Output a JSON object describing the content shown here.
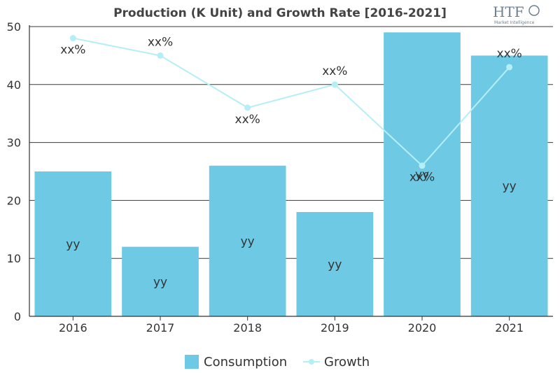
{
  "logo": {
    "mark": "HTF",
    "tagline": "Market Intelligence"
  },
  "chart_data": {
    "type": "bar",
    "title": "Production (K Unit) and Growth Rate [2016-2021]",
    "categories": [
      "2016",
      "2017",
      "2018",
      "2019",
      "2020",
      "2021"
    ],
    "ylim": [
      0,
      50
    ],
    "yticks": [
      0,
      10,
      20,
      30,
      40,
      50
    ],
    "grid": true,
    "legend_position": "bottom",
    "series": [
      {
        "name": "Consumption",
        "type": "bar",
        "color": "#6ecae4",
        "values": [
          25,
          12,
          26,
          18,
          49,
          45
        ],
        "labels": [
          "yy",
          "yy",
          "yy",
          "yy",
          "yy",
          "yy"
        ]
      },
      {
        "name": "Growth",
        "type": "line",
        "color": "#b4eff5",
        "values": [
          48,
          45,
          36,
          40,
          26,
          43
        ],
        "labels": [
          "xx%",
          "xx%",
          "xx%",
          "xx%",
          "xx%",
          "xx%"
        ]
      }
    ]
  }
}
